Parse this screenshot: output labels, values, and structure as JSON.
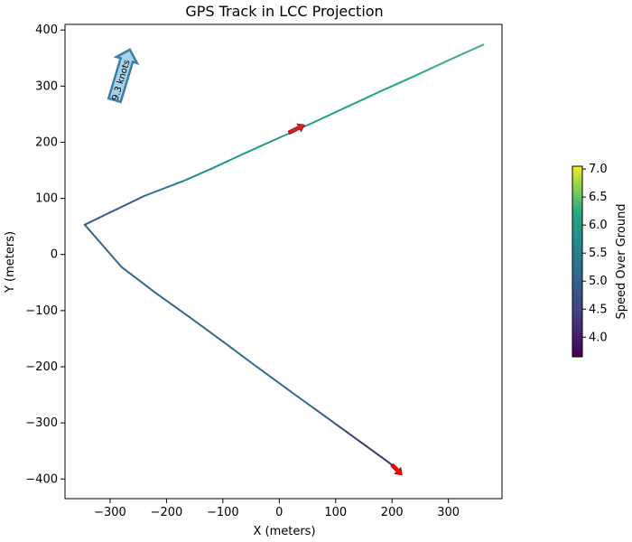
{
  "chart_data": {
    "type": "line",
    "title": "GPS Track in LCC Projection",
    "xlabel": "X (meters)",
    "ylabel": "Y (meters)",
    "xlim": [
      -380,
      395
    ],
    "ylim": [
      -435,
      410
    ],
    "xticks": [
      -300,
      -200,
      -100,
      0,
      100,
      200,
      300
    ],
    "yticks": [
      -400,
      -300,
      -200,
      -100,
      0,
      100,
      200,
      300,
      400
    ],
    "grid": false,
    "colormap": "viridis",
    "colorbar": {
      "label": "Speed Over Ground",
      "vmin": 3.65,
      "vmax": 7.05,
      "ticks": [
        4.0,
        4.5,
        5.0,
        5.5,
        6.0,
        6.5,
        7.0
      ],
      "tick_labels": [
        "4.0",
        "4.5",
        "5.0",
        "5.5",
        "6.0",
        "6.5",
        "7.0"
      ]
    },
    "series": [
      {
        "x": [
          215,
          200,
          180,
          140,
          100,
          60,
          20,
          -40,
          -100,
          -160,
          -220,
          -280,
          -345,
          -300,
          -240,
          -170,
          -120,
          -60,
          0,
          60,
          120,
          180,
          240,
          300,
          362
        ],
        "y": [
          -388,
          -375,
          -360,
          -331,
          -302,
          -273,
          -244,
          -200,
          -155,
          -111,
          -68,
          -22,
          53,
          75,
          104,
          131,
          153,
          181,
          208,
          235,
          263,
          291,
          318,
          346,
          374
        ],
        "speed": [
          4.2,
          4.2,
          4.2,
          4.3,
          4.6,
          5.2,
          5.2,
          5.2,
          5.2,
          5.1,
          5.1,
          5.1,
          5.0,
          4.9,
          4.9,
          5.8,
          5.8,
          5.9,
          6.0,
          6.0,
          6.1,
          6.2,
          6.2,
          6.3,
          6.3
        ]
      }
    ],
    "heading_arrows": [
      {
        "x": 17,
        "y": 217,
        "dx": 28,
        "dy": 14,
        "color": "#d62020"
      },
      {
        "x": 200,
        "y": -375,
        "dx": 18,
        "dy": -18,
        "color": "#ff0000"
      }
    ],
    "wind_arrow": {
      "label": "9.3 knots",
      "from_x": -292,
      "from_y": 275,
      "to_x": -265,
      "to_y": 365,
      "color": "#a6d3ea",
      "edge_color": "#3b7ea8"
    }
  }
}
